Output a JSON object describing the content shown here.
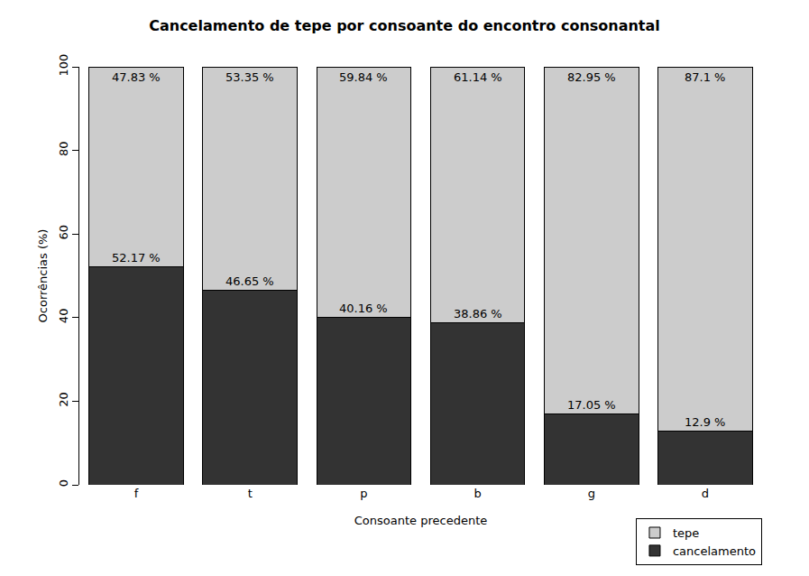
{
  "chart_data": {
    "type": "bar",
    "stacked": true,
    "title": "Cancelamento de tepe por consoante do encontro consonantal",
    "x_label": "Consoante precedente",
    "y_label": "Ocorrências (%)",
    "categories": [
      "f",
      "t",
      "p",
      "b",
      "g",
      "d"
    ],
    "series": [
      {
        "name": "cancelamento",
        "color": "#333333",
        "values": [
          52.17,
          46.65,
          40.16,
          38.86,
          17.05,
          12.9
        ],
        "value_labels": [
          "52.17 %",
          "46.65 %",
          "40.16 %",
          "38.86 %",
          "17.05 %",
          "12.9 %"
        ]
      },
      {
        "name": "tepe",
        "color": "#cccccc",
        "values": [
          47.83,
          53.35,
          59.84,
          61.14,
          82.95,
          87.1
        ],
        "value_labels": [
          "47.83 %",
          "53.35 %",
          "59.84 %",
          "61.14 %",
          "82.95 %",
          "87.1 %"
        ]
      }
    ],
    "ylim": [
      0,
      100
    ],
    "yticks": [
      0,
      20,
      40,
      60,
      80,
      100
    ],
    "grid": false,
    "legend": "bottomright",
    "data_labels": true
  }
}
